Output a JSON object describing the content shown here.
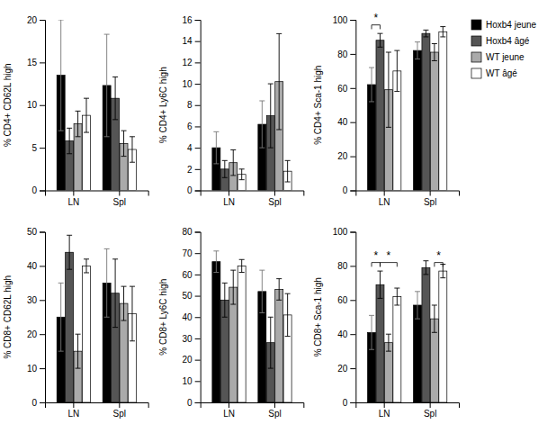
{
  "chart_data": [
    {
      "type": "bar",
      "ylabel": "% CD4+ CD62L high",
      "categories": [
        "LN",
        "Spl"
      ],
      "ylim": [
        0,
        20
      ],
      "yticks": [
        0,
        5,
        10,
        15,
        20
      ],
      "series": [
        {
          "name": "Hoxb4 jeune",
          "color": "#000000",
          "values": [
            13.5,
            12.3
          ],
          "errors": [
            6.5,
            6.0
          ]
        },
        {
          "name": "Hoxb4 âgé",
          "color": "#555555",
          "values": [
            5.8,
            10.8
          ],
          "errors": [
            1.5,
            2.5
          ]
        },
        {
          "name": "WT jeune",
          "color": "#aaaaaa",
          "values": [
            7.8,
            5.5
          ],
          "errors": [
            1.5,
            1.5
          ]
        },
        {
          "name": "WT âgé",
          "color": "#ffffff",
          "values": [
            8.8,
            4.8
          ],
          "errors": [
            2.0,
            1.5
          ]
        }
      ]
    },
    {
      "type": "bar",
      "ylabel": "% CD4+ Ly6C high",
      "categories": [
        "LN",
        "Spl"
      ],
      "ylim": [
        0,
        16
      ],
      "yticks": [
        0,
        2,
        4,
        6,
        8,
        10,
        12,
        14,
        16
      ],
      "series": [
        {
          "name": "Hoxb4 jeune",
          "color": "#000000",
          "values": [
            4.0,
            6.2
          ],
          "errors": [
            1.5,
            2.2
          ]
        },
        {
          "name": "Hoxb4 âgé",
          "color": "#555555",
          "values": [
            2.0,
            7.0
          ],
          "errors": [
            0.8,
            3.0
          ]
        },
        {
          "name": "WT jeune",
          "color": "#aaaaaa",
          "values": [
            2.6,
            10.2
          ],
          "errors": [
            1.2,
            4.5
          ]
        },
        {
          "name": "WT âgé",
          "color": "#ffffff",
          "values": [
            1.5,
            1.8
          ],
          "errors": [
            0.5,
            1.0
          ]
        }
      ]
    },
    {
      "type": "bar",
      "ylabel": "% CD4+ Sca-1 high",
      "categories": [
        "LN",
        "Spl"
      ],
      "ylim": [
        0,
        100
      ],
      "yticks": [
        0,
        20,
        40,
        60,
        80,
        100
      ],
      "legend": "right",
      "series": [
        {
          "name": "Hoxb4 jeune",
          "color": "#000000",
          "values": [
            62,
            82
          ],
          "errors": [
            10,
            5
          ]
        },
        {
          "name": "Hoxb4 âgé",
          "color": "#555555",
          "values": [
            88,
            92
          ],
          "errors": [
            4,
            2
          ]
        },
        {
          "name": "WT jeune",
          "color": "#aaaaaa",
          "values": [
            59,
            81
          ],
          "errors": [
            22,
            5
          ]
        },
        {
          "name": "WT âgé",
          "color": "#ffffff",
          "values": [
            70,
            93
          ],
          "errors": [
            12,
            3
          ]
        }
      ],
      "annotations": [
        {
          "text": "*",
          "category": "LN",
          "series": [
            "Hoxb4 jeune",
            "Hoxb4 âgé"
          ],
          "y": 97,
          "text_y": 99
        }
      ]
    },
    {
      "type": "bar",
      "ylabel": "% CD8+ CD62L high",
      "categories": [
        "LN",
        "Spl"
      ],
      "ylim": [
        0,
        50
      ],
      "yticks": [
        0,
        10,
        20,
        30,
        40,
        50
      ],
      "series": [
        {
          "name": "Hoxb4 jeune",
          "color": "#000000",
          "values": [
            25,
            35
          ],
          "errors": [
            10,
            10
          ]
        },
        {
          "name": "Hoxb4 âgé",
          "color": "#555555",
          "values": [
            44,
            32
          ],
          "errors": [
            5,
            10
          ]
        },
        {
          "name": "WT jeune",
          "color": "#aaaaaa",
          "values": [
            15,
            29
          ],
          "errors": [
            5,
            5
          ]
        },
        {
          "name": "WT âgé",
          "color": "#ffffff",
          "values": [
            40,
            26
          ],
          "errors": [
            2,
            8
          ]
        }
      ]
    },
    {
      "type": "bar",
      "ylabel": "% CD8+ Ly6C high",
      "categories": [
        "LN",
        "Spl"
      ],
      "ylim": [
        0,
        80
      ],
      "yticks": [
        0,
        10,
        20,
        30,
        40,
        50,
        60,
        70,
        80
      ],
      "series": [
        {
          "name": "Hoxb4 jeune",
          "color": "#000000",
          "values": [
            66,
            52
          ],
          "errors": [
            5,
            10
          ]
        },
        {
          "name": "Hoxb4 âgé",
          "color": "#555555",
          "values": [
            48,
            28
          ],
          "errors": [
            8,
            12
          ]
        },
        {
          "name": "WT jeune",
          "color": "#aaaaaa",
          "values": [
            54,
            53
          ],
          "errors": [
            8,
            5
          ]
        },
        {
          "name": "WT âgé",
          "color": "#ffffff",
          "values": [
            64,
            41
          ],
          "errors": [
            3,
            10
          ]
        }
      ]
    },
    {
      "type": "bar",
      "ylabel": "% CD8+ Sca-1 high",
      "categories": [
        "LN",
        "Spl"
      ],
      "ylim": [
        0,
        100
      ],
      "yticks": [
        0,
        20,
        40,
        60,
        80,
        100
      ],
      "series": [
        {
          "name": "Hoxb4 jeune",
          "color": "#000000",
          "values": [
            41,
            57
          ],
          "errors": [
            10,
            8
          ]
        },
        {
          "name": "Hoxb4 âgé",
          "color": "#555555",
          "values": [
            69,
            79
          ],
          "errors": [
            8,
            4
          ]
        },
        {
          "name": "WT jeune",
          "color": "#aaaaaa",
          "values": [
            35,
            49
          ],
          "errors": [
            5,
            8
          ]
        },
        {
          "name": "WT âgé",
          "color": "#ffffff",
          "values": [
            62,
            77
          ],
          "errors": [
            5,
            4
          ]
        }
      ],
      "annotations": [
        {
          "text": "*",
          "category": "LN",
          "series": [
            "Hoxb4 jeune",
            "Hoxb4 âgé"
          ],
          "y": 82,
          "text_y": 84
        },
        {
          "text": "*",
          "category": "LN",
          "series": [
            "Hoxb4 âgé",
            "WT âgé"
          ],
          "y": 82,
          "text_y": 84
        },
        {
          "text": "*",
          "category": "Spl",
          "series": [
            "WT jeune",
            "WT âgé"
          ],
          "y": 82,
          "text_y": 84
        }
      ]
    }
  ]
}
